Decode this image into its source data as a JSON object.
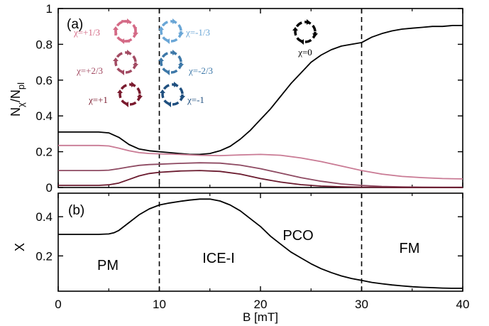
{
  "figure": {
    "panel_a_label": "(a)",
    "panel_b_label": "(b)",
    "xlabel": "B [mT]",
    "ylabel_a_main": "N",
    "ylabel_a_sub": "χ",
    "ylabel_a_slash": "/N",
    "ylabel_a_sub2": "pl",
    "ylabel_b": "X",
    "phase_labels": [
      "PM",
      "ICE-I",
      "PCO",
      "FM"
    ],
    "vertical_dashed_lines_x": [
      10,
      30
    ]
  },
  "legend_a": [
    {
      "label": "χ=+1/3",
      "color": "#d46a86"
    },
    {
      "label": "χ=-1/3",
      "color": "#6aa6d6"
    },
    {
      "label": "χ=+2/3",
      "color": "#a24a62"
    },
    {
      "label": "χ=-2/3",
      "color": "#3d78a8"
    },
    {
      "label": "χ=+1",
      "color": "#7a1a2e"
    },
    {
      "label": "χ=-1",
      "color": "#1f4f7f"
    },
    {
      "label": "χ=0",
      "color": "#000000"
    }
  ],
  "chart_data": [
    {
      "type": "line",
      "panel": "(a)",
      "xlim": [
        0,
        40
      ],
      "ylim": [
        0,
        1
      ],
      "xticks": [
        0,
        10,
        20,
        30,
        40
      ],
      "yticks": [
        0,
        0.2,
        0.4,
        0.6,
        0.8,
        1
      ],
      "ytick_labels": [
        "0",
        "0.2",
        "0.4",
        "0.6",
        "0.8",
        "1"
      ],
      "series": [
        {
          "name": "χ=0",
          "color": "#000000",
          "x": [
            0,
            2,
            4,
            5,
            6,
            7,
            8,
            9,
            10,
            11,
            12,
            13,
            14,
            15,
            16,
            17,
            18,
            19,
            20,
            21,
            22,
            23,
            24,
            25,
            26,
            27,
            28,
            29,
            30,
            31,
            32,
            33,
            34,
            35,
            36,
            37,
            38,
            39,
            40
          ],
          "y": [
            0.31,
            0.31,
            0.31,
            0.305,
            0.28,
            0.24,
            0.215,
            0.205,
            0.2,
            0.195,
            0.19,
            0.185,
            0.185,
            0.19,
            0.205,
            0.23,
            0.27,
            0.32,
            0.38,
            0.44,
            0.51,
            0.58,
            0.64,
            0.7,
            0.74,
            0.77,
            0.79,
            0.8,
            0.81,
            0.84,
            0.86,
            0.875,
            0.885,
            0.89,
            0.895,
            0.9,
            0.9,
            0.905,
            0.905
          ]
        },
        {
          "name": "χ=±1/3",
          "color": "#c97a94",
          "x": [
            0,
            2,
            4,
            5,
            6,
            7,
            8,
            9,
            10,
            12,
            14,
            16,
            18,
            20,
            22,
            24,
            26,
            28,
            30,
            32,
            34,
            36,
            38,
            40
          ],
          "y": [
            0.235,
            0.235,
            0.235,
            0.232,
            0.22,
            0.205,
            0.195,
            0.19,
            0.188,
            0.185,
            0.18,
            0.178,
            0.182,
            0.185,
            0.18,
            0.165,
            0.145,
            0.12,
            0.095,
            0.075,
            0.062,
            0.055,
            0.05,
            0.048
          ]
        },
        {
          "name": "χ=±2/3",
          "color": "#8e4a62",
          "x": [
            0,
            2,
            4,
            5,
            6,
            7,
            8,
            9,
            10,
            12,
            14,
            16,
            18,
            20,
            22,
            24,
            26,
            28,
            30,
            32,
            34,
            36,
            38,
            40
          ],
          "y": [
            0.095,
            0.095,
            0.095,
            0.097,
            0.105,
            0.115,
            0.124,
            0.128,
            0.13,
            0.135,
            0.138,
            0.136,
            0.125,
            0.105,
            0.08,
            0.055,
            0.035,
            0.02,
            0.012,
            0.006,
            0.003,
            0.002,
            0.001,
            0.001
          ]
        },
        {
          "name": "χ=±1",
          "color": "#6a1a2e",
          "x": [
            0,
            2,
            4,
            5,
            6,
            7,
            8,
            9,
            10,
            12,
            14,
            16,
            18,
            20,
            22,
            24,
            26,
            28,
            30,
            32,
            34,
            36,
            38,
            40
          ],
          "y": [
            0.012,
            0.012,
            0.012,
            0.015,
            0.025,
            0.045,
            0.065,
            0.078,
            0.085,
            0.092,
            0.095,
            0.09,
            0.075,
            0.05,
            0.03,
            0.016,
            0.008,
            0.004,
            0.002,
            0.001,
            0.0,
            0.0,
            0.0,
            0.0
          ]
        }
      ]
    },
    {
      "type": "line",
      "panel": "(b)",
      "xlim": [
        0,
        40
      ],
      "ylim": [
        0.02,
        0.52
      ],
      "xticks": [
        0,
        10,
        20,
        30,
        40
      ],
      "yticks": [
        0.2,
        0.4
      ],
      "ytick_labels": [
        "0.2",
        "0.4"
      ],
      "series": [
        {
          "name": "X",
          "color": "#000000",
          "x": [
            0,
            2,
            4,
            5,
            5.5,
            6,
            7,
            8,
            9,
            10,
            11,
            12,
            13,
            14,
            15,
            16,
            17,
            18,
            19,
            20,
            21,
            22,
            23,
            24,
            25,
            26,
            27,
            28,
            29,
            30,
            31,
            32,
            33,
            34,
            35,
            36,
            37,
            38,
            39,
            40
          ],
          "y": [
            0.31,
            0.31,
            0.31,
            0.312,
            0.318,
            0.33,
            0.37,
            0.41,
            0.44,
            0.46,
            0.47,
            0.478,
            0.485,
            0.49,
            0.49,
            0.48,
            0.46,
            0.43,
            0.39,
            0.35,
            0.3,
            0.26,
            0.22,
            0.19,
            0.16,
            0.135,
            0.115,
            0.098,
            0.085,
            0.075,
            0.065,
            0.058,
            0.052,
            0.047,
            0.043,
            0.04,
            0.038,
            0.036,
            0.035,
            0.035
          ]
        }
      ]
    }
  ]
}
